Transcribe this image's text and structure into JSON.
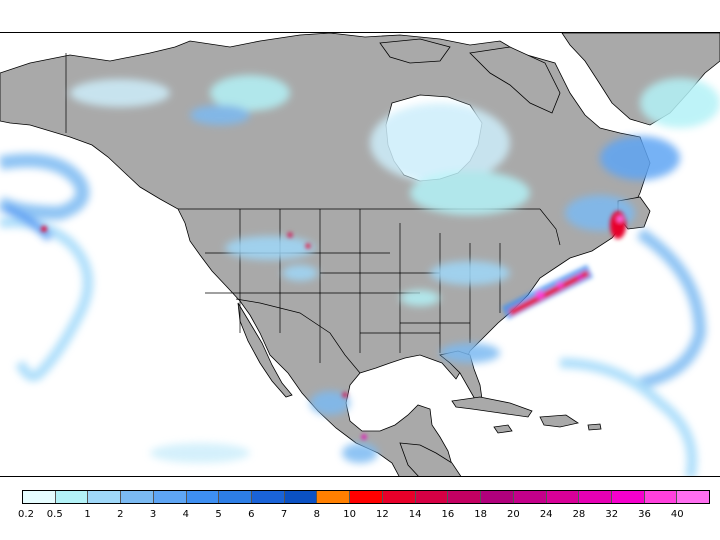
{
  "map": {
    "land_color": "#a9a9a9",
    "water_color": "#ffffff",
    "border_color": "#000000"
  },
  "legend": {
    "colors": [
      "#e6fdff",
      "#b3f2f7",
      "#9fd8f9",
      "#7bbaf2",
      "#5ea5f4",
      "#3e8ff2",
      "#2d7ee6",
      "#1a63d8",
      "#0b51c4",
      "#ff7f00",
      "#ff0000",
      "#e8002a",
      "#d60044",
      "#c40062",
      "#b1007c",
      "#c4008a",
      "#d80098",
      "#e600b4",
      "#f500cc",
      "#ff40dd",
      "#ff6ef0"
    ],
    "labels": [
      "0.2",
      "0.5",
      "1",
      "2",
      "3",
      "4",
      "5",
      "6",
      "7",
      "8",
      "10",
      "12",
      "14",
      "16",
      "18",
      "20",
      "24",
      "28",
      "32",
      "36",
      "40"
    ]
  }
}
